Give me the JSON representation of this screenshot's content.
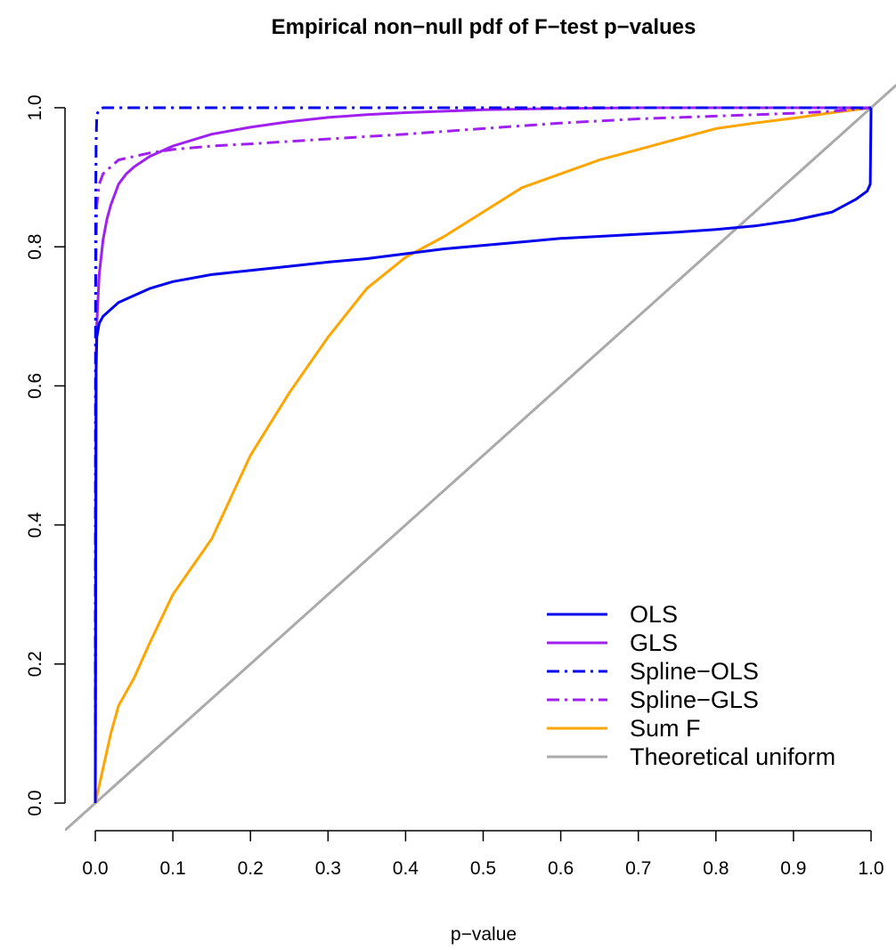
{
  "chart_data": {
    "type": "line",
    "title": "Empirical non−null pdf of F−test p−values",
    "xlabel": "p−value",
    "ylabel": "",
    "xlim": [
      -0.04,
      1.04
    ],
    "ylim": [
      -0.04,
      1.04
    ],
    "x_ticks": [
      0.0,
      0.1,
      0.2,
      0.3,
      0.4,
      0.5,
      0.6,
      0.7,
      0.8,
      0.9,
      1.0
    ],
    "x_tick_labels": [
      "0.0",
      "0.1",
      "0.2",
      "0.3",
      "0.4",
      "0.5",
      "0.6",
      "0.7",
      "0.8",
      "0.9",
      "1.0"
    ],
    "y_ticks": [
      0.0,
      0.2,
      0.4,
      0.6,
      0.8,
      1.0
    ],
    "y_tick_labels": [
      "0.0",
      "0.2",
      "0.4",
      "0.6",
      "0.8",
      "1.0"
    ],
    "grid": false,
    "legend_position": "bottom-right",
    "series": [
      {
        "name": "OLS",
        "color": "#0000ee",
        "dash": "solid",
        "x": [
          0,
          0.001,
          0.002,
          0.005,
          0.01,
          0.02,
          0.03,
          0.05,
          0.07,
          0.1,
          0.15,
          0.2,
          0.25,
          0.3,
          0.35,
          0.4,
          0.45,
          0.5,
          0.55,
          0.6,
          0.65,
          0.7,
          0.75,
          0.8,
          0.85,
          0.9,
          0.95,
          0.98,
          0.995,
          0.999,
          1.0
        ],
        "y": [
          0,
          0.62,
          0.67,
          0.69,
          0.7,
          0.71,
          0.72,
          0.73,
          0.74,
          0.75,
          0.76,
          0.766,
          0.772,
          0.778,
          0.783,
          0.79,
          0.797,
          0.802,
          0.807,
          0.812,
          0.815,
          0.818,
          0.821,
          0.825,
          0.83,
          0.838,
          0.85,
          0.868,
          0.88,
          0.89,
          1.0
        ]
      },
      {
        "name": "GLS",
        "color": "#a020f0",
        "dash": "solid",
        "x": [
          0,
          0.001,
          0.002,
          0.005,
          0.01,
          0.015,
          0.02,
          0.03,
          0.04,
          0.05,
          0.07,
          0.1,
          0.15,
          0.2,
          0.25,
          0.3,
          0.35,
          0.4,
          0.5,
          0.6,
          0.7,
          0.8,
          0.9,
          1.0
        ],
        "y": [
          0,
          0.64,
          0.69,
          0.76,
          0.81,
          0.84,
          0.86,
          0.89,
          0.905,
          0.915,
          0.93,
          0.945,
          0.962,
          0.972,
          0.98,
          0.986,
          0.99,
          0.993,
          0.997,
          0.999,
          1.0,
          1.0,
          1.0,
          1.0
        ]
      },
      {
        "name": "Spline−OLS",
        "color": "#0000ee",
        "dash": "dashdot",
        "x": [
          0,
          0.0005,
          0.001,
          0.002,
          0.005,
          0.01,
          0.05,
          0.3,
          0.6,
          1.0
        ],
        "y": [
          0,
          0.85,
          0.95,
          0.99,
          0.998,
          1.0,
          1.0,
          1.0,
          1.0,
          1.0
        ]
      },
      {
        "name": "Spline−GLS",
        "color": "#a020f0",
        "dash": "dashdot",
        "x": [
          0,
          0.0005,
          0.001,
          0.002,
          0.005,
          0.01,
          0.02,
          0.03,
          0.05,
          0.07,
          0.1,
          0.15,
          0.2,
          0.3,
          0.4,
          0.5,
          0.6,
          0.7,
          0.8,
          0.9,
          0.95,
          1.0
        ],
        "y": [
          0,
          0.72,
          0.8,
          0.86,
          0.89,
          0.905,
          0.915,
          0.925,
          0.93,
          0.935,
          0.94,
          0.945,
          0.948,
          0.955,
          0.962,
          0.97,
          0.978,
          0.984,
          0.988,
          0.992,
          0.995,
          1.0
        ]
      },
      {
        "name": "Sum F",
        "color": "#ffa500",
        "dash": "solid",
        "x": [
          0,
          0.01,
          0.02,
          0.03,
          0.05,
          0.07,
          0.1,
          0.15,
          0.2,
          0.25,
          0.3,
          0.35,
          0.4,
          0.45,
          0.5,
          0.55,
          0.6,
          0.65,
          0.7,
          0.75,
          0.8,
          0.85,
          0.9,
          0.95,
          1.0
        ],
        "y": [
          0,
          0.05,
          0.1,
          0.14,
          0.18,
          0.23,
          0.3,
          0.38,
          0.5,
          0.59,
          0.67,
          0.74,
          0.785,
          0.815,
          0.85,
          0.885,
          0.905,
          0.925,
          0.94,
          0.955,
          0.97,
          0.978,
          0.985,
          0.993,
          1.0
        ]
      },
      {
        "name": "Theoretical uniform",
        "color": "#aaaaaa",
        "dash": "solid",
        "x": [
          -0.04,
          1.04
        ],
        "y": [
          -0.04,
          1.04
        ]
      }
    ]
  }
}
